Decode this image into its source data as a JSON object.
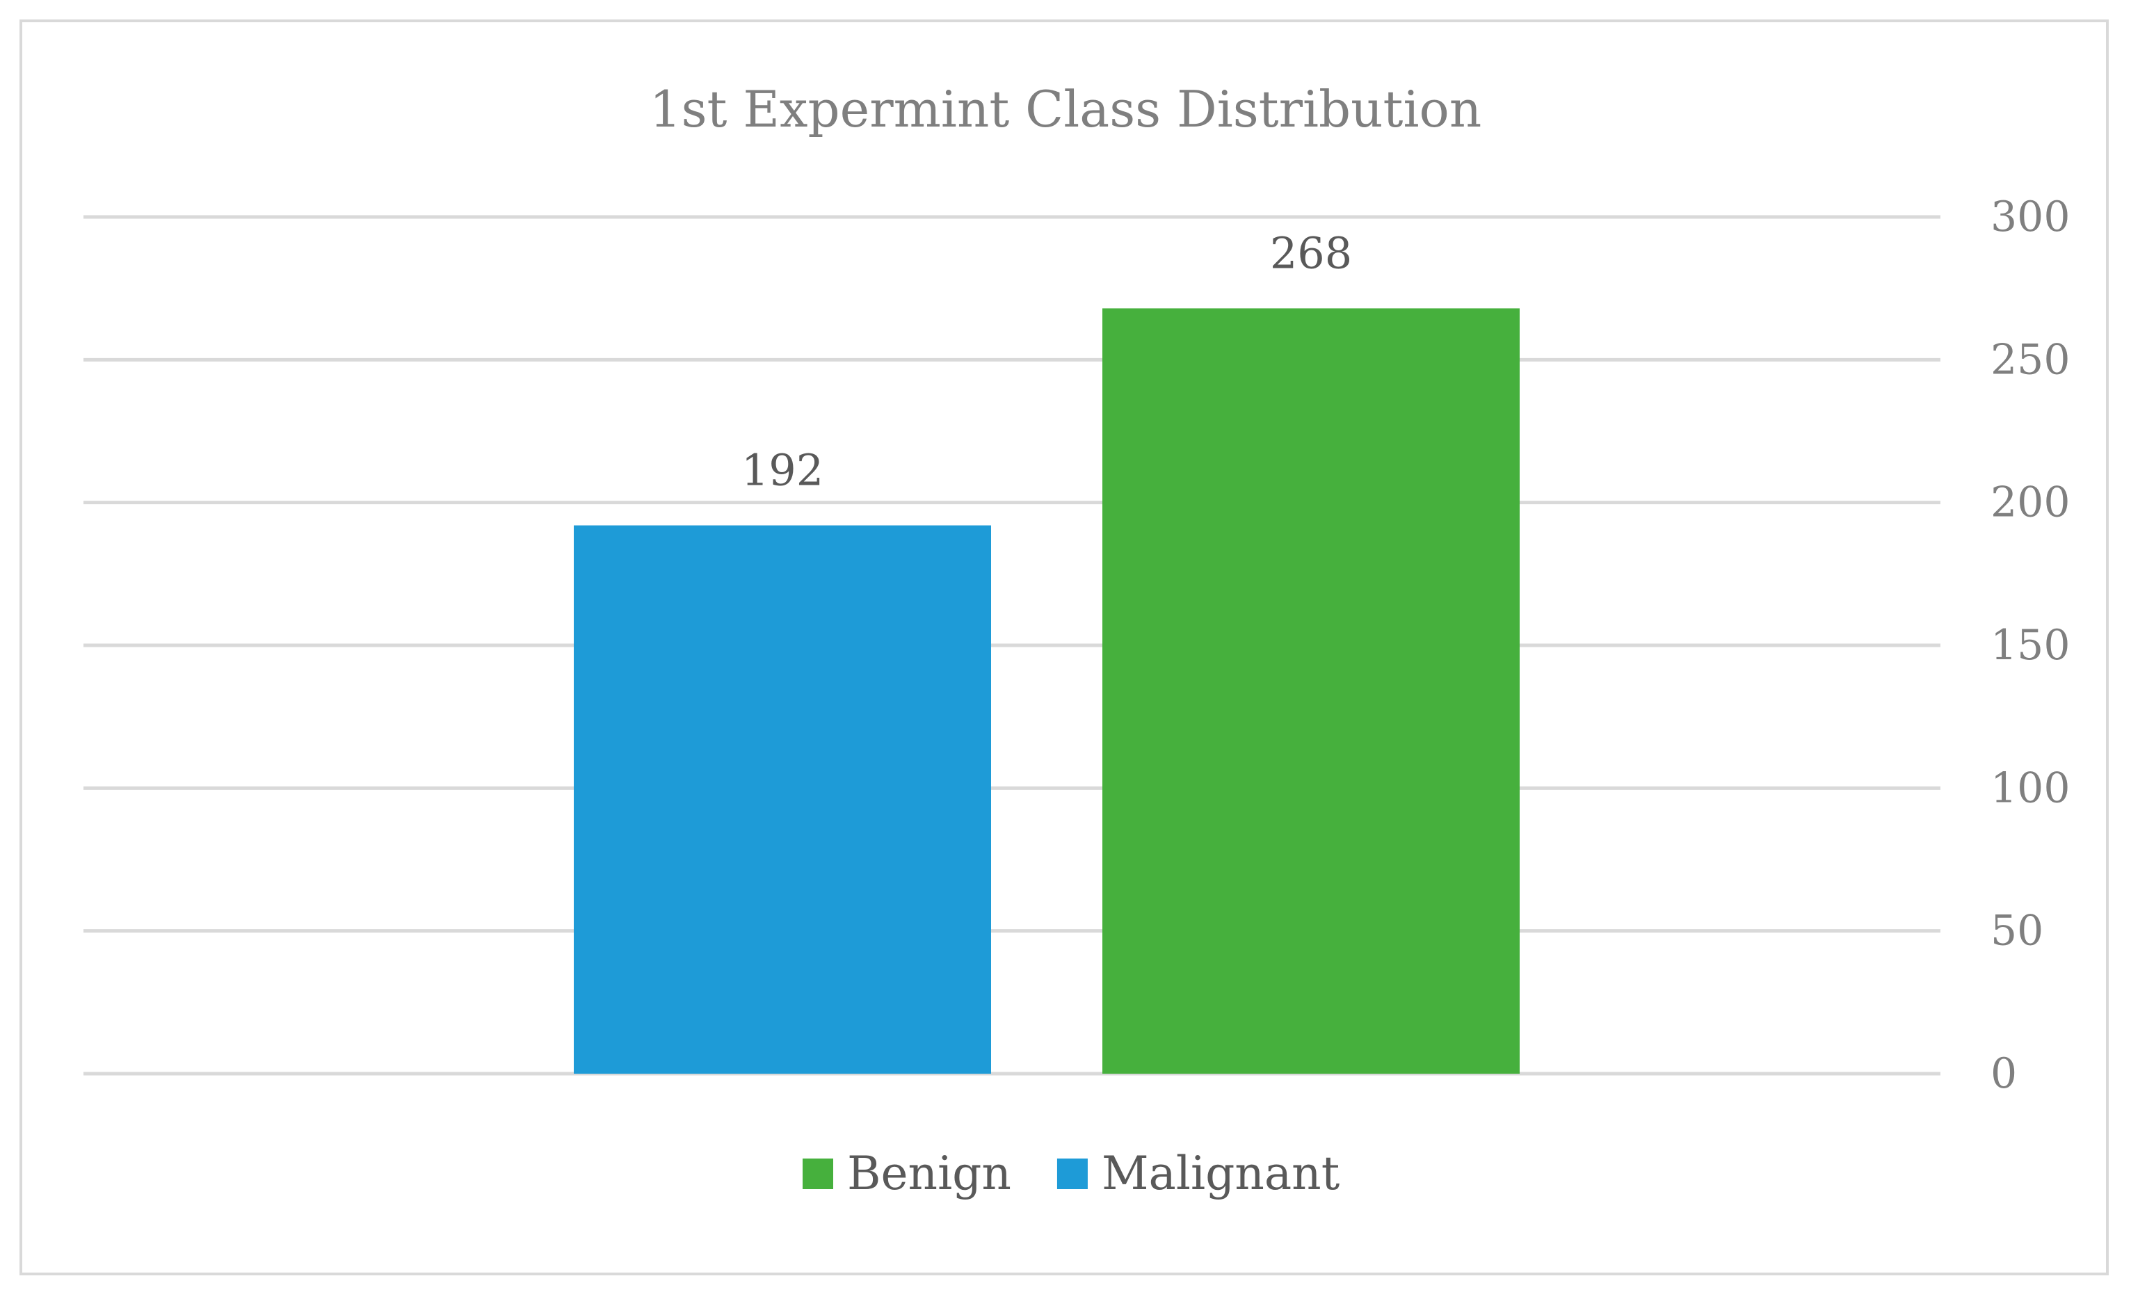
{
  "chart_data": {
    "type": "bar",
    "title": "1st Expermint Class Distribution",
    "ylim": [
      0,
      300
    ],
    "yticks": [
      0,
      50,
      100,
      150,
      200,
      250,
      300
    ],
    "y_axis_side": "right",
    "grid": true,
    "legend_position": "bottom",
    "series": [
      {
        "name": "Malignant",
        "value": 192,
        "color": "#1e9bd7"
      },
      {
        "name": "Benign",
        "value": 268,
        "color": "#46b03d"
      }
    ],
    "legend_order": [
      "Benign",
      "Malignant"
    ]
  }
}
